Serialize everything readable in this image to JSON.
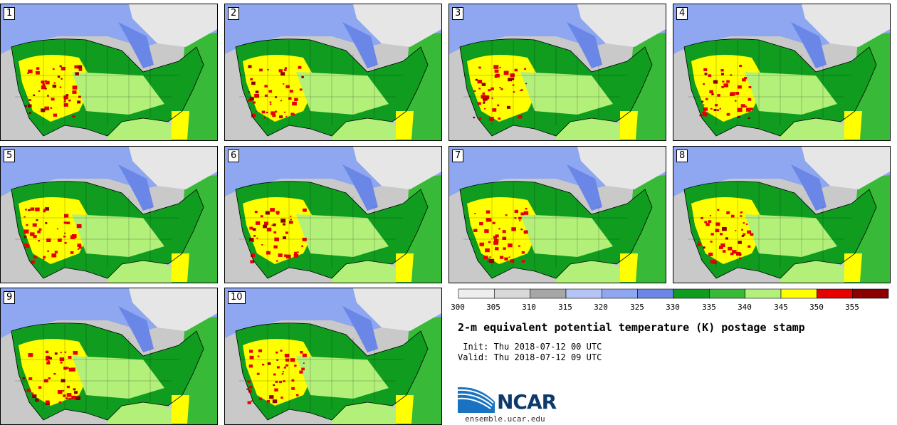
{
  "panels": [
    {
      "number": "1"
    },
    {
      "number": "2"
    },
    {
      "number": "3"
    },
    {
      "number": "4"
    },
    {
      "number": "5"
    },
    {
      "number": "6"
    },
    {
      "number": "7"
    },
    {
      "number": "8"
    },
    {
      "number": "9"
    },
    {
      "number": "10"
    }
  ],
  "colorbar": {
    "tick_labels": [
      "300",
      "305",
      "310",
      "315",
      "320",
      "325",
      "330",
      "335",
      "340",
      "345",
      "350",
      "355"
    ],
    "colors": [
      "#eeeeee",
      "#d9d9d9",
      "#a6a6a6",
      "#b3c4f5",
      "#8ea7f0",
      "#6a86e6",
      "#0f9c1f",
      "#38b938",
      "#b3f07a",
      "#ffff00",
      "#e60000",
      "#8b0000"
    ]
  },
  "title": "2-m equivalent potential temperature (K) postage stamp",
  "init_line": " Init: Thu 2018-07-12 00 UTC",
  "valid_line": "Valid: Thu 2018-07-12 09 UTC",
  "logo": {
    "name": "NCAR",
    "url": "ensemble.ucar.edu"
  },
  "colors": {
    "ocean_gray": "#c9c9c9",
    "plains_green": "#0f9c1f",
    "west_yellow": "#ffff00",
    "hot_red": "#e60000",
    "cool_blue": "#8ea7f0",
    "northeast_gray": "#e6e6e6"
  }
}
